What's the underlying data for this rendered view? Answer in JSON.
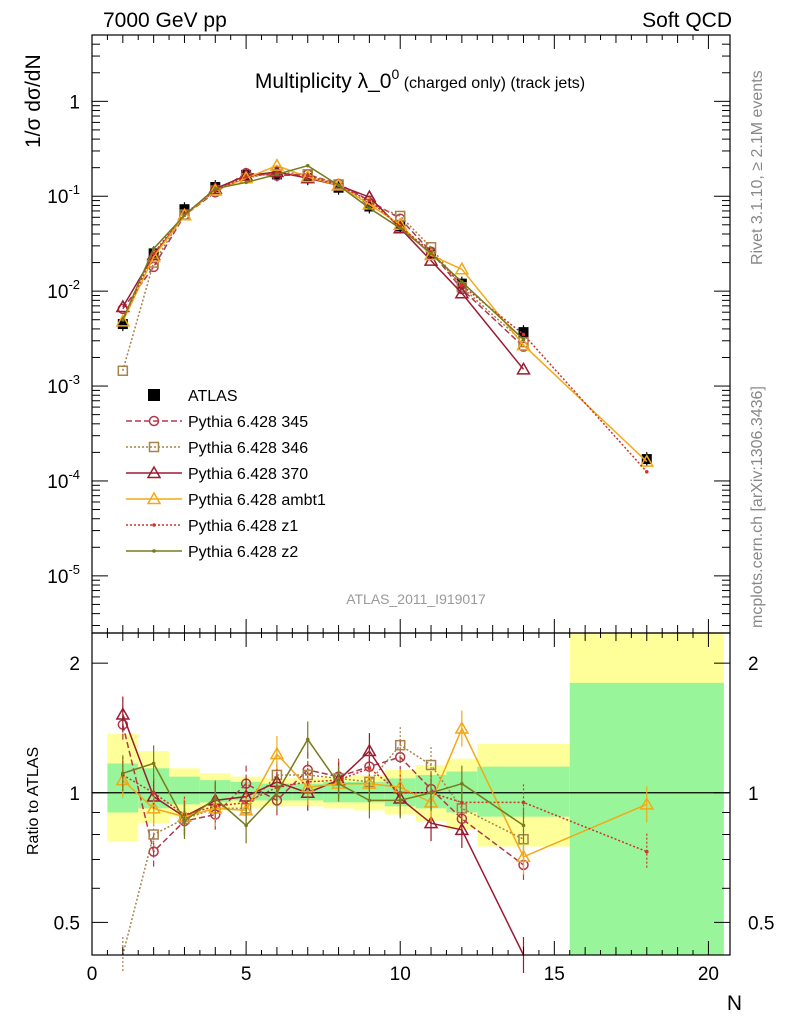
{
  "header": {
    "left": "7000 GeV pp",
    "right": "Soft QCD"
  },
  "title_main": "Multiplicity λ_0",
  "title_sup": "0",
  "title_sub": " (charged only) (track jets)",
  "ylabel_top": "1/σ dσ/dN",
  "ylabel_bottom": "Ratio to ATLAS",
  "xlabel": "N",
  "side_top": "Rivet 3.1.10, ≥ 2.1M events",
  "side_bottom": "mcplots.cern.ch [arXiv:1306.3436]",
  "analysis": "ATLAS_2011_I919017",
  "chart_data": [
    {
      "type": "line",
      "panel": "main",
      "ylog": true,
      "xlim": [
        0,
        20.7
      ],
      "ylim": [
        2.5e-06,
        5
      ],
      "x_ticks": [
        "0",
        "5",
        "10",
        "15",
        "20"
      ],
      "y_ticks": [
        "10^-5",
        "10^-4",
        "10^-3",
        "10^-2",
        "10^-1",
        "1"
      ],
      "legend_position": "left-middle",
      "x": [
        1,
        2,
        3,
        4,
        5,
        6,
        7,
        8,
        9,
        10,
        11,
        12,
        14,
        18
      ],
      "series": [
        {
          "name": "ATLAS",
          "color": "#000000",
          "style": "data",
          "values": [
            0.0045,
            0.025,
            0.073,
            0.125,
            0.168,
            0.17,
            0.155,
            0.123,
            0.078,
            0.048,
            0.025,
            0.012,
            0.0037,
            0.00017
          ]
        },
        {
          "name": "Pythia 6.428 345",
          "color": "#b0384a",
          "style": "dashed",
          "marker": "circle",
          "values": [
            0.0065,
            0.018,
            0.063,
            0.11,
            0.175,
            0.165,
            0.17,
            0.135,
            0.09,
            0.058,
            0.026,
            0.0105,
            0.0026,
            null
          ]
        },
        {
          "name": "Pythia 6.428 346",
          "color": "#a68349",
          "style": "dotted",
          "marker": "square",
          "values": [
            0.00145,
            0.02,
            0.064,
            0.115,
            0.155,
            0.18,
            0.17,
            0.133,
            0.083,
            0.062,
            0.029,
            0.011,
            0.0029,
            null
          ]
        },
        {
          "name": "Pythia 6.428 370",
          "color": "#9b1b30",
          "style": "solid",
          "marker": "triangle",
          "values": [
            0.0068,
            0.024,
            0.063,
            0.12,
            0.165,
            0.18,
            0.155,
            0.13,
            0.098,
            0.046,
            0.021,
            0.0095,
            0.0015,
            null
          ]
        },
        {
          "name": "Pythia 6.428 ambt1",
          "color": "#f3a916",
          "style": "solid",
          "marker": "triangle",
          "values": [
            0.0048,
            0.023,
            0.063,
            0.115,
            0.155,
            0.21,
            0.16,
            0.13,
            0.082,
            0.05,
            0.024,
            0.017,
            0.0027,
            0.00016
          ]
        },
        {
          "name": "Pythia 6.428 z1",
          "color": "#d2322d",
          "style": "dotted",
          "marker": "dot",
          "values": [
            0.005,
            0.025,
            0.065,
            0.115,
            0.16,
            0.175,
            0.165,
            0.13,
            0.09,
            0.048,
            0.026,
            0.0115,
            0.0035,
            0.000125
          ]
        },
        {
          "name": "Pythia 6.428 z2",
          "color": "#787a1e",
          "style": "solid",
          "marker": "dot",
          "values": [
            0.005,
            0.028,
            0.063,
            0.12,
            0.14,
            0.17,
            0.21,
            0.13,
            0.075,
            0.046,
            0.025,
            0.0125,
            0.0031,
            null
          ]
        }
      ]
    },
    {
      "type": "line",
      "panel": "ratio",
      "ylog": true,
      "xlim": [
        0,
        20.7
      ],
      "ylim": [
        0.42,
        2.35
      ],
      "y_ticks": [
        "0.5",
        "1",
        "2"
      ],
      "reference_line": 1,
      "bands": [
        {
          "x": [
            0.5,
            1.5
          ],
          "inner": [
            0.9,
            1.17
          ],
          "outer": [
            0.77,
            1.37
          ]
        },
        {
          "x": [
            1.5,
            2.5
          ],
          "inner": [
            0.92,
            1.14
          ],
          "outer": [
            0.85,
            1.25
          ]
        },
        {
          "x": [
            2.5,
            3.5
          ],
          "inner": [
            0.94,
            1.09
          ],
          "outer": [
            0.88,
            1.14
          ]
        },
        {
          "x": [
            3.5,
            4.5
          ],
          "inner": [
            0.95,
            1.07
          ],
          "outer": [
            0.91,
            1.11
          ]
        },
        {
          "x": [
            4.5,
            5.5
          ],
          "inner": [
            0.96,
            1.06
          ],
          "outer": [
            0.92,
            1.09
          ]
        },
        {
          "x": [
            5.5,
            6.5
          ],
          "inner": [
            0.96,
            1.05
          ],
          "outer": [
            0.93,
            1.08
          ]
        },
        {
          "x": [
            6.5,
            7.5
          ],
          "inner": [
            0.96,
            1.05
          ],
          "outer": [
            0.93,
            1.08
          ]
        },
        {
          "x": [
            7.5,
            8.5
          ],
          "inner": [
            0.95,
            1.06
          ],
          "outer": [
            0.92,
            1.09
          ]
        },
        {
          "x": [
            8.5,
            9.5
          ],
          "inner": [
            0.95,
            1.06
          ],
          "outer": [
            0.91,
            1.1
          ]
        },
        {
          "x": [
            9.5,
            10.5
          ],
          "inner": [
            0.93,
            1.08
          ],
          "outer": [
            0.89,
            1.13
          ]
        },
        {
          "x": [
            10.5,
            11.5
          ],
          "inner": [
            0.92,
            1.1
          ],
          "outer": [
            0.86,
            1.16
          ]
        },
        {
          "x": [
            11.5,
            12.5
          ],
          "inner": [
            0.9,
            1.12
          ],
          "outer": [
            0.82,
            1.2
          ]
        },
        {
          "x": [
            12.5,
            15.5
          ],
          "inner": [
            0.88,
            1.15
          ],
          "outer": [
            0.75,
            1.3
          ]
        },
        {
          "x": [
            15.5,
            20.5
          ],
          "inner": [
            0.42,
            1.8
          ],
          "outer": [
            0.42,
            2.35
          ]
        }
      ],
      "x": [
        1,
        2,
        3,
        4,
        5,
        6,
        7,
        8,
        9,
        10,
        11,
        12,
        14,
        18
      ],
      "series": [
        {
          "name": "Pythia 6.428 345",
          "color": "#b0384a",
          "style": "dashed",
          "marker": "circle",
          "values": [
            1.44,
            0.73,
            0.86,
            0.89,
            1.05,
            0.96,
            1.13,
            1.09,
            1.15,
            1.21,
            1.02,
            0.87,
            0.68,
            null
          ]
        },
        {
          "name": "Pythia 6.428 346",
          "color": "#a68349",
          "style": "dotted",
          "marker": "square",
          "values": [
            0.32,
            0.8,
            0.87,
            0.92,
            0.92,
            1.1,
            1.1,
            1.08,
            1.06,
            1.29,
            1.16,
            0.92,
            0.78,
            null
          ]
        },
        {
          "name": "Pythia 6.428 370",
          "color": "#9b1b30",
          "style": "solid",
          "marker": "triangle",
          "values": [
            1.52,
            0.98,
            0.88,
            0.96,
            0.98,
            1.06,
            1.0,
            1.07,
            1.25,
            0.97,
            0.85,
            0.82,
            0.41,
            null
          ]
        },
        {
          "name": "Pythia 6.428 ambt1",
          "color": "#f3a916",
          "style": "solid",
          "marker": "triangle",
          "values": [
            1.07,
            0.92,
            0.88,
            0.92,
            0.91,
            1.23,
            1.03,
            1.05,
            1.05,
            1.03,
            0.95,
            1.41,
            0.71,
            0.94
          ]
        },
        {
          "name": "Pythia 6.428 z1",
          "color": "#d2322d",
          "style": "dotted",
          "marker": "dot",
          "values": [
            1.1,
            1.0,
            0.89,
            0.93,
            0.95,
            1.03,
            1.06,
            1.07,
            1.14,
            1.0,
            1.0,
            0.95,
            0.95,
            0.73
          ]
        },
        {
          "name": "Pythia 6.428 z2",
          "color": "#787a1e",
          "style": "solid",
          "marker": "dot",
          "values": [
            1.11,
            1.17,
            0.86,
            0.97,
            0.84,
            1.0,
            1.33,
            1.05,
            0.96,
            0.96,
            1.0,
            1.05,
            0.84,
            null
          ]
        }
      ]
    }
  ]
}
